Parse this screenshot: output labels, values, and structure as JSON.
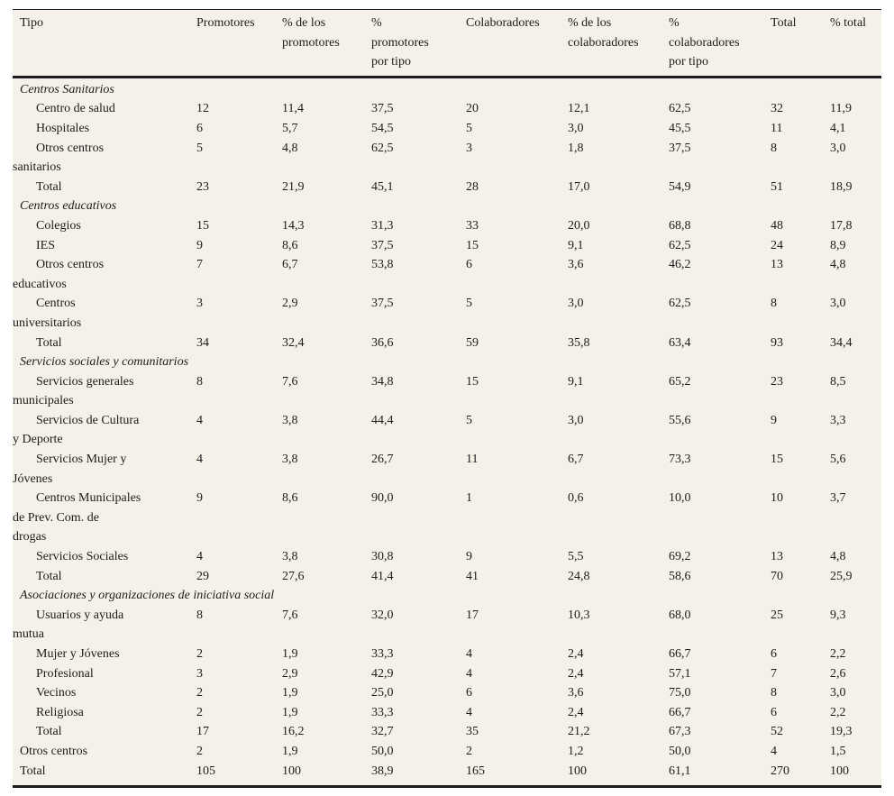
{
  "colors": {
    "paper": "#f5f1e8",
    "ink": "#1c1c1c",
    "page_bg": "#ffffff"
  },
  "table": {
    "columns": [
      "Tipo",
      "Promotores",
      "% de los\npromotores",
      "%\npromotores\npor tipo",
      "Colaboradores",
      "% de los\ncolaboradores",
      "%\ncolaboradores\npor tipo",
      "Total",
      "% total"
    ],
    "groups": [
      {
        "header": "Centros Sanitarios",
        "rows": [
          {
            "label": "Centro de salud",
            "indent": true,
            "values": [
              "12",
              "11,4",
              "37,5",
              "20",
              "12,1",
              "62,5",
              "32",
              "11,9"
            ]
          },
          {
            "label": "Hospitales",
            "indent": true,
            "values": [
              "6",
              "5,7",
              "54,5",
              "5",
              "3,0",
              "45,5",
              "11",
              "4,1"
            ]
          },
          {
            "label": "Otros centros\nsanitarios",
            "indent": true,
            "values": [
              "5",
              "4,8",
              "62,5",
              "3",
              "1,8",
              "37,5",
              "8",
              "3,0"
            ]
          },
          {
            "label": "Total",
            "indent": true,
            "values": [
              "23",
              "21,9",
              "45,1",
              "28",
              "17,0",
              "54,9",
              "51",
              "18,9"
            ]
          }
        ]
      },
      {
        "header": "Centros educativos",
        "rows": [
          {
            "label": "Colegios",
            "indent": true,
            "values": [
              "15",
              "14,3",
              "31,3",
              "33",
              "20,0",
              "68,8",
              "48",
              "17,8"
            ]
          },
          {
            "label": "IES",
            "indent": true,
            "values": [
              "9",
              "8,6",
              "37,5",
              "15",
              "9,1",
              "62,5",
              "24",
              "8,9"
            ]
          },
          {
            "label": "Otros centros\neducativos",
            "indent": true,
            "values": [
              "7",
              "6,7",
              "53,8",
              "6",
              "3,6",
              "46,2",
              "13",
              "4,8"
            ]
          },
          {
            "label": "Centros\nuniversitarios",
            "indent": true,
            "values": [
              "3",
              "2,9",
              "37,5",
              "5",
              "3,0",
              "62,5",
              "8",
              "3,0"
            ]
          },
          {
            "label": "Total",
            "indent": true,
            "values": [
              "34",
              "32,4",
              "36,6",
              "59",
              "35,8",
              "63,4",
              "93",
              "34,4"
            ]
          }
        ]
      },
      {
        "header": "Servicios sociales y comunitarios",
        "rows": [
          {
            "label": "Servicios generales\nmunicipales",
            "indent": true,
            "values": [
              "8",
              "7,6",
              "34,8",
              "15",
              "9,1",
              "65,2",
              "23",
              "8,5"
            ]
          },
          {
            "label": "Servicios de Cultura\ny Deporte",
            "indent": true,
            "values": [
              "4",
              "3,8",
              "44,4",
              "5",
              "3,0",
              "55,6",
              "9",
              "3,3"
            ]
          },
          {
            "label": "Servicios Mujer y\nJóvenes",
            "indent": true,
            "values": [
              "4",
              "3,8",
              "26,7",
              "11",
              "6,7",
              "73,3",
              "15",
              "5,6"
            ]
          },
          {
            "label": "Centros Municipales\nde Prev. Com. de\ndrogas",
            "indent": true,
            "values": [
              "9",
              "8,6",
              "90,0",
              "1",
              "0,6",
              "10,0",
              "10",
              "3,7"
            ]
          },
          {
            "label": "Servicios Sociales",
            "indent": true,
            "values": [
              "4",
              "3,8",
              "30,8",
              "9",
              "5,5",
              "69,2",
              "13",
              "4,8"
            ]
          },
          {
            "label": "Total",
            "indent": true,
            "values": [
              "29",
              "27,6",
              "41,4",
              "41",
              "24,8",
              "58,6",
              "70",
              "25,9"
            ]
          }
        ]
      },
      {
        "header": "Asociaciones y organizaciones de iniciativa social",
        "rows": [
          {
            "label": "Usuarios y ayuda\nmutua",
            "indent": true,
            "values": [
              "8",
              "7,6",
              "32,0",
              "17",
              "10,3",
              "68,0",
              "25",
              "9,3"
            ]
          },
          {
            "label": "Mujer y Jóvenes",
            "indent": true,
            "values": [
              "2",
              "1,9",
              "33,3",
              "4",
              "2,4",
              "66,7",
              "6",
              "2,2"
            ]
          },
          {
            "label": "Profesional",
            "indent": true,
            "values": [
              "3",
              "2,9",
              "42,9",
              "4",
              "2,4",
              "57,1",
              "7",
              "2,6"
            ]
          },
          {
            "label": "Vecinos",
            "indent": true,
            "values": [
              "2",
              "1,9",
              "25,0",
              "6",
              "3,6",
              "75,0",
              "8",
              "3,0"
            ]
          },
          {
            "label": "Religiosa",
            "indent": true,
            "values": [
              "2",
              "1,9",
              "33,3",
              "4",
              "2,4",
              "66,7",
              "6",
              "2,2"
            ]
          },
          {
            "label": "Total",
            "indent": true,
            "values": [
              "17",
              "16,2",
              "32,7",
              "35",
              "21,2",
              "67,3",
              "52",
              "19,3"
            ]
          }
        ]
      },
      {
        "header": null,
        "rows": [
          {
            "label": "Otros centros",
            "indent": false,
            "values": [
              "2",
              "1,9",
              "50,0",
              "2",
              "1,2",
              "50,0",
              "4",
              "1,5"
            ]
          },
          {
            "label": "Total",
            "indent": false,
            "values": [
              "105",
              "100",
              "38,9",
              "165",
              "100",
              "61,1",
              "270",
              "100"
            ]
          }
        ]
      }
    ]
  }
}
